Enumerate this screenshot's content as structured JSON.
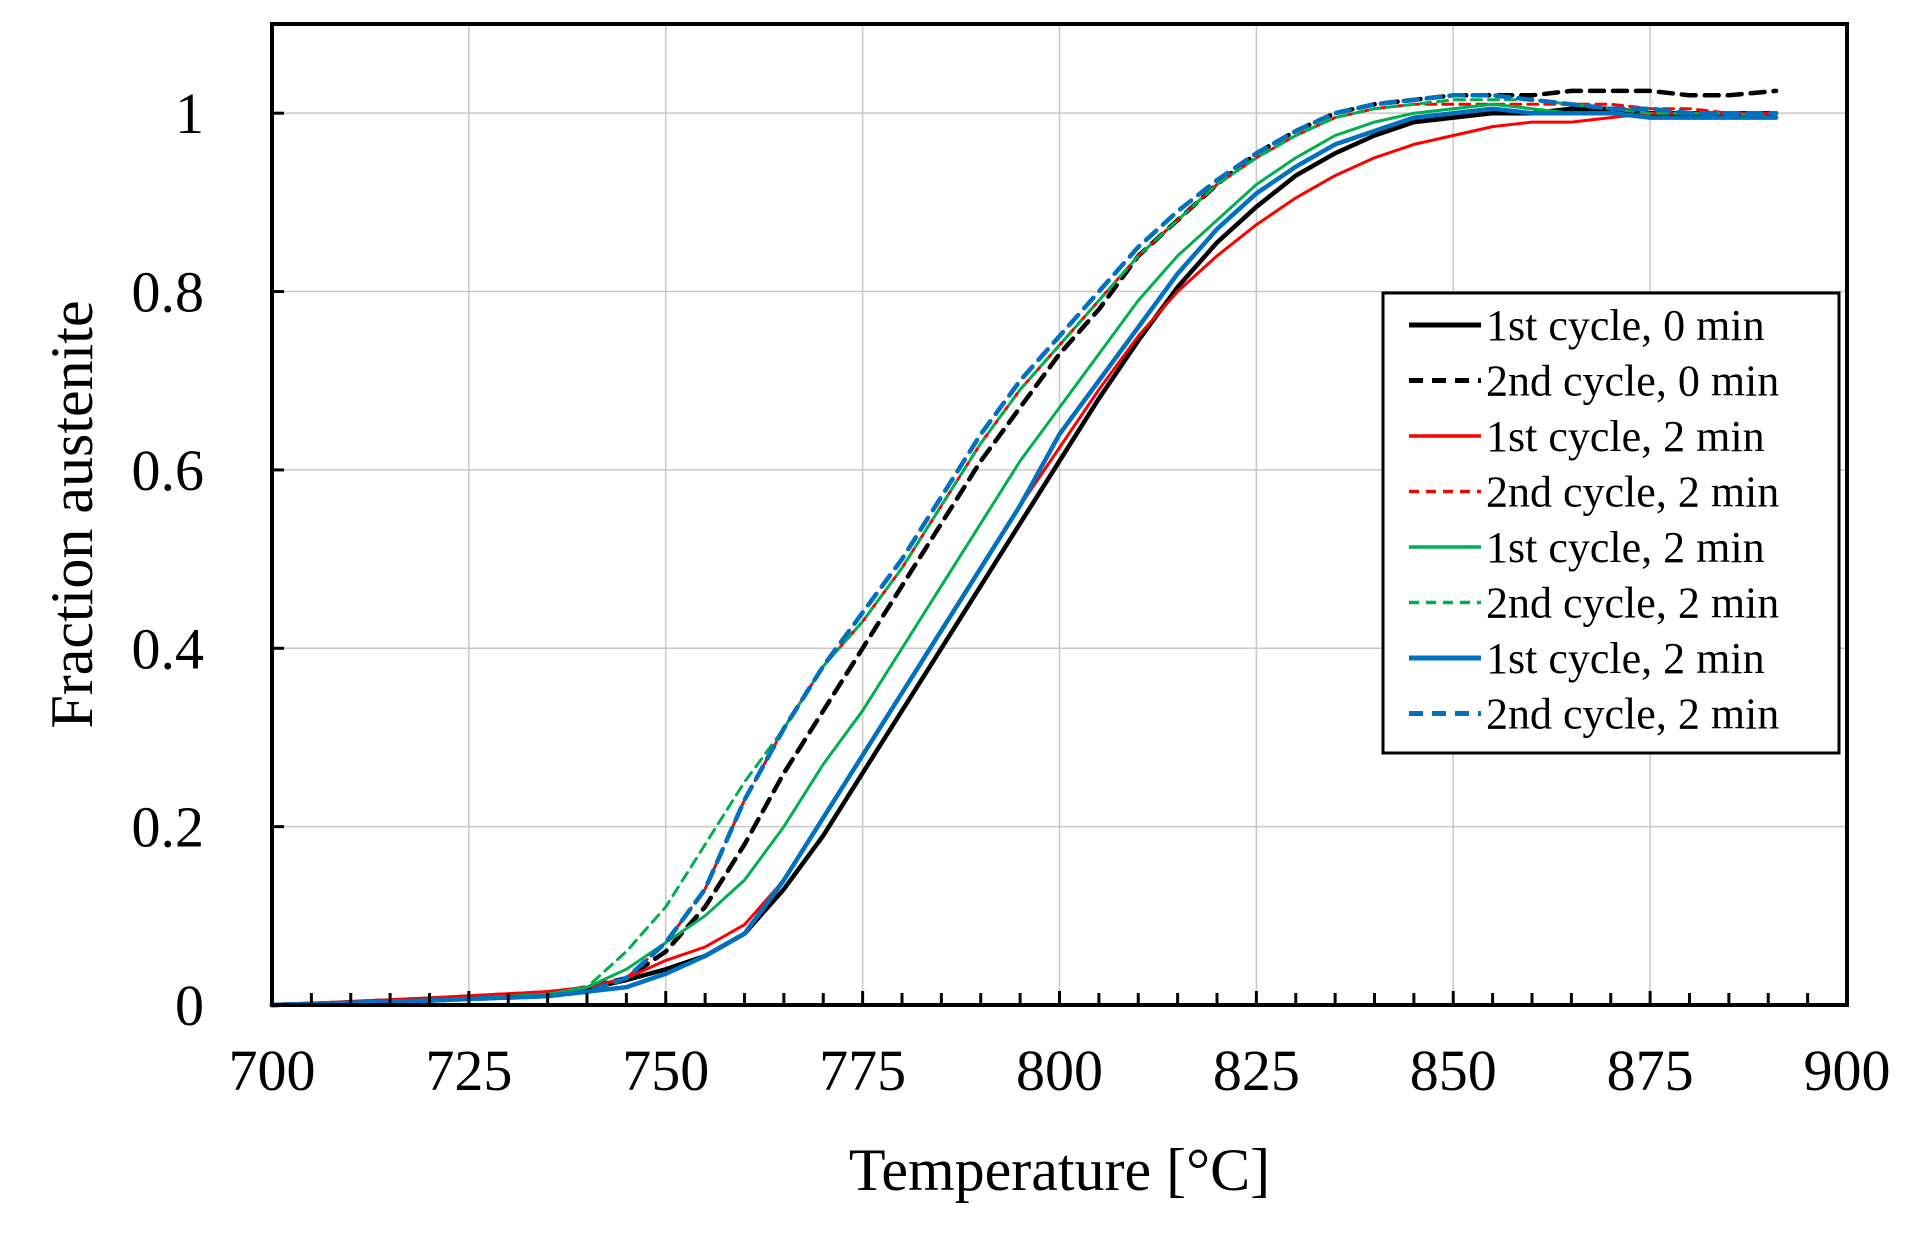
{
  "chart_data": {
    "type": "line",
    "title": "",
    "xlabel": "Temperature [°C]",
    "ylabel": "Fraction austenite",
    "xlim": [
      700,
      900
    ],
    "ylim": [
      0,
      1.1
    ],
    "x_ticks": [
      700,
      725,
      750,
      775,
      800,
      825,
      850,
      875,
      900
    ],
    "x_tick_labels": [
      "700",
      "725",
      "750",
      "775",
      "800",
      "825",
      "850",
      "875",
      "900"
    ],
    "y_ticks": [
      0,
      0.2,
      0.4,
      0.6,
      0.8,
      1
    ],
    "y_tick_labels": [
      "0",
      "0.2",
      "0.4",
      "0.6",
      "0.8",
      "1"
    ],
    "grid": true,
    "legend_position": "right-middle",
    "series": [
      {
        "name": "1st cycle, 0 min",
        "color": "#000000",
        "dash": "solid",
        "weight": "bold",
        "x": [
          700,
          720,
          735,
          740,
          745,
          750,
          755,
          760,
          765,
          770,
          775,
          780,
          785,
          790,
          795,
          800,
          805,
          810,
          815,
          820,
          825,
          830,
          835,
          840,
          845,
          850,
          855,
          860,
          865,
          870,
          875,
          880,
          885,
          891
        ],
        "y": [
          0,
          0.005,
          0.012,
          0.018,
          0.028,
          0.04,
          0.055,
          0.08,
          0.13,
          0.19,
          0.26,
          0.33,
          0.4,
          0.47,
          0.54,
          0.61,
          0.68,
          0.745,
          0.805,
          0.855,
          0.895,
          0.93,
          0.955,
          0.975,
          0.99,
          0.995,
          1.0,
          1.0,
          1.005,
          1.005,
          1.0,
          1.0,
          1.0,
          1.0
        ]
      },
      {
        "name": "2nd cycle, 0 min",
        "color": "#000000",
        "dash": "dashed",
        "weight": "bold",
        "x": [
          700,
          720,
          735,
          740,
          745,
          750,
          755,
          760,
          765,
          770,
          775,
          780,
          785,
          790,
          795,
          800,
          805,
          810,
          815,
          820,
          825,
          830,
          835,
          840,
          845,
          850,
          855,
          860,
          865,
          870,
          875,
          880,
          885,
          891
        ],
        "y": [
          0,
          0.005,
          0.012,
          0.02,
          0.03,
          0.06,
          0.11,
          0.18,
          0.26,
          0.33,
          0.4,
          0.47,
          0.54,
          0.61,
          0.67,
          0.73,
          0.78,
          0.84,
          0.88,
          0.92,
          0.955,
          0.98,
          1.0,
          1.01,
          1.015,
          1.02,
          1.02,
          1.02,
          1.025,
          1.025,
          1.025,
          1.02,
          1.02,
          1.025
        ]
      },
      {
        "name": "1st cycle, 2 min",
        "color": "#ff0000",
        "dash": "solid",
        "weight": "normal",
        "x": [
          700,
          720,
          735,
          740,
          745,
          750,
          755,
          760,
          765,
          770,
          775,
          780,
          785,
          790,
          795,
          800,
          805,
          810,
          815,
          820,
          825,
          830,
          835,
          840,
          845,
          850,
          855,
          860,
          865,
          870,
          875,
          880,
          885,
          891
        ],
        "y": [
          0,
          0.008,
          0.015,
          0.02,
          0.03,
          0.05,
          0.065,
          0.09,
          0.14,
          0.21,
          0.28,
          0.35,
          0.42,
          0.49,
          0.56,
          0.625,
          0.69,
          0.75,
          0.8,
          0.84,
          0.875,
          0.905,
          0.93,
          0.95,
          0.965,
          0.975,
          0.985,
          0.99,
          0.99,
          0.995,
          1.0,
          1.0,
          1.0,
          1.0
        ]
      },
      {
        "name": "2nd cycle, 2 min",
        "color": "#ff0000",
        "dash": "dashed",
        "weight": "normal",
        "x": [
          700,
          720,
          735,
          740,
          745,
          750,
          755,
          760,
          765,
          770,
          775,
          780,
          785,
          790,
          795,
          800,
          805,
          810,
          815,
          820,
          825,
          830,
          835,
          840,
          845,
          850,
          855,
          860,
          865,
          870,
          875,
          880,
          885,
          891
        ],
        "y": [
          0,
          0.008,
          0.015,
          0.02,
          0.03,
          0.07,
          0.13,
          0.23,
          0.31,
          0.38,
          0.43,
          0.49,
          0.56,
          0.63,
          0.69,
          0.74,
          0.79,
          0.84,
          0.88,
          0.92,
          0.95,
          0.975,
          0.995,
          1.005,
          1.01,
          1.01,
          1.01,
          1.01,
          1.01,
          1.01,
          1.005,
          1.005,
          1.0,
          1.0
        ]
      },
      {
        "name": "1st cycle, 2 min",
        "color": "#00b050",
        "dash": "solid",
        "weight": "normal",
        "x": [
          700,
          720,
          735,
          740,
          745,
          750,
          755,
          760,
          765,
          770,
          775,
          780,
          785,
          790,
          795,
          800,
          805,
          810,
          815,
          820,
          825,
          830,
          835,
          840,
          845,
          850,
          855,
          860,
          865,
          870,
          875,
          880,
          885,
          891
        ],
        "y": [
          0,
          0.005,
          0.012,
          0.02,
          0.04,
          0.07,
          0.1,
          0.14,
          0.2,
          0.27,
          0.33,
          0.4,
          0.47,
          0.54,
          0.61,
          0.67,
          0.73,
          0.79,
          0.84,
          0.88,
          0.92,
          0.95,
          0.975,
          0.99,
          1.0,
          1.005,
          1.01,
          1.005,
          1.0,
          1.0,
          0.995,
          0.995,
          0.995,
          0.995
        ]
      },
      {
        "name": "2nd cycle, 2 min",
        "color": "#00b050",
        "dash": "dashed",
        "weight": "normal",
        "x": [
          700,
          720,
          735,
          740,
          745,
          750,
          755,
          760,
          765,
          770,
          775,
          780,
          785,
          790,
          795,
          800,
          805,
          810,
          815,
          820,
          825,
          830,
          835,
          840,
          845,
          850,
          855,
          860,
          865,
          870,
          875,
          880,
          885,
          891
        ],
        "y": [
          0,
          0.005,
          0.012,
          0.02,
          0.06,
          0.11,
          0.18,
          0.25,
          0.31,
          0.38,
          0.43,
          0.49,
          0.56,
          0.63,
          0.69,
          0.74,
          0.79,
          0.84,
          0.88,
          0.92,
          0.95,
          0.975,
          0.995,
          1.005,
          1.01,
          1.015,
          1.015,
          1.015,
          1.01,
          1.005,
          1.0,
          1.0,
          1.0,
          0.995
        ]
      },
      {
        "name": "1st cycle, 2 min",
        "color": "#0070c0",
        "dash": "solid",
        "weight": "bold",
        "x": [
          700,
          720,
          735,
          740,
          745,
          750,
          755,
          760,
          765,
          770,
          775,
          780,
          785,
          790,
          795,
          800,
          805,
          810,
          815,
          820,
          825,
          830,
          835,
          840,
          845,
          850,
          855,
          860,
          865,
          870,
          875,
          880,
          885,
          891
        ],
        "y": [
          0,
          0.005,
          0.01,
          0.015,
          0.02,
          0.035,
          0.055,
          0.08,
          0.14,
          0.21,
          0.28,
          0.35,
          0.42,
          0.49,
          0.56,
          0.64,
          0.7,
          0.76,
          0.82,
          0.87,
          0.91,
          0.94,
          0.965,
          0.98,
          0.995,
          1.0,
          1.005,
          1.0,
          1.0,
          1.0,
          0.995,
          0.995,
          0.995,
          0.995
        ]
      },
      {
        "name": "2nd cycle, 2 min",
        "color": "#0070c0",
        "dash": "dashed",
        "weight": "bold",
        "x": [
          700,
          720,
          735,
          740,
          745,
          750,
          755,
          760,
          765,
          770,
          775,
          780,
          785,
          790,
          795,
          800,
          805,
          810,
          815,
          820,
          825,
          830,
          835,
          840,
          845,
          850,
          855,
          860,
          865,
          870,
          875,
          880,
          885,
          891
        ],
        "y": [
          0,
          0.005,
          0.01,
          0.015,
          0.03,
          0.07,
          0.13,
          0.23,
          0.31,
          0.38,
          0.44,
          0.5,
          0.57,
          0.64,
          0.7,
          0.75,
          0.8,
          0.85,
          0.89,
          0.925,
          0.955,
          0.98,
          1.0,
          1.01,
          1.015,
          1.02,
          1.02,
          1.015,
          1.01,
          1.005,
          1.005,
          1.0,
          1.0,
          1.0
        ]
      }
    ]
  }
}
